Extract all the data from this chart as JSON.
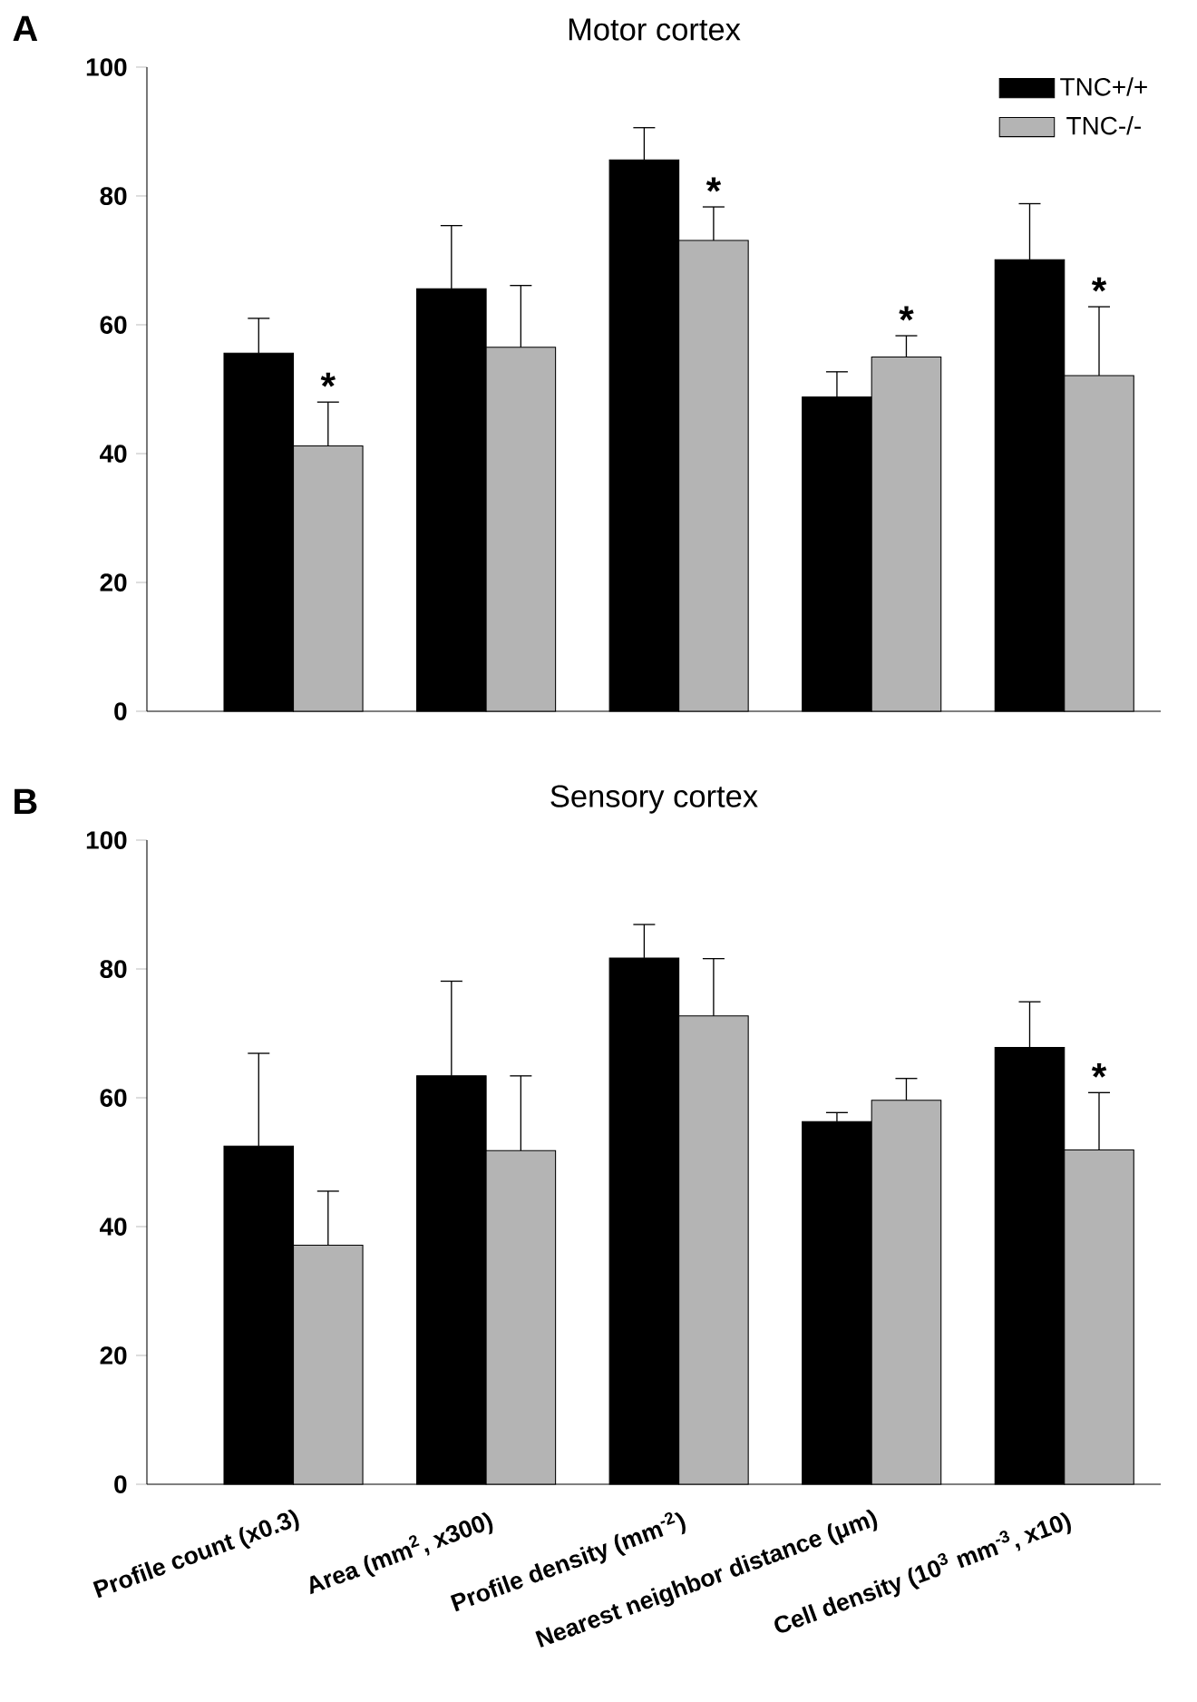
{
  "chart_data": [
    {
      "type": "bar",
      "title": "Motor cortex",
      "categories": [
        "Profile count (x0.3)",
        "Area (mm$^{2}$, x300)",
        "Profile density (mm$^{-2}$)",
        "Nearest neighbor distance (μm)",
        "Cell density (10$^{3}$ mm$^{-3}$, x10)"
      ],
      "series": [
        {
          "name": "TNC+/+",
          "color": "#000000",
          "values": [
            55.6,
            65.6,
            85.6,
            48.8,
            70.1
          ],
          "errors": [
            [
              55.6,
              61.0
            ],
            [
              65.6,
              75.4
            ],
            [
              85.6,
              90.6
            ],
            [
              48.8,
              52.7
            ],
            [
              70.1,
              78.8
            ]
          ]
        },
        {
          "name": "TNC-/-",
          "color": "#b4b4b4",
          "values": [
            41.2,
            56.5,
            73.1,
            55.0,
            52.1
          ],
          "errors": [
            [
              41.2,
              48.0
            ],
            [
              56.5,
              66.1
            ],
            [
              73.1,
              78.3
            ],
            [
              55.0,
              58.3
            ],
            [
              52.1,
              62.8
            ]
          ]
        }
      ],
      "ylim": [
        0,
        100
      ],
      "yticks": [
        0,
        20,
        40,
        60,
        80,
        100
      ],
      "legend": "top right",
      "tick_labels": "y",
      "annotations": [
        "A",
        {
          "text": "*",
          "x": "Profile count (x0.3)",
          "y": 48.0
        },
        {
          "text": "*",
          "x": "Profile density (mm$^{-2}$)",
          "y": 78.3
        },
        {
          "text": "*",
          "x": "Nearest neighbor distance (μm)",
          "y": 55.0
        },
        {
          "text": "*",
          "x": "Cell density (10$^{3}$ mm$^{-3}$, x10)",
          "y": 62.8
        }
      ]
    },
    {
      "type": "bar",
      "title": "Sensory cortex",
      "categories": [
        "Profile count (x0.3)",
        "Area (mm$^{2}$, x300)",
        "Profile density (mm$^{-2}$)",
        "Nearest neighbor distance (μm)",
        "Cell density (10$^{3}$ mm$^{-3}$, x10)"
      ],
      "series": [
        {
          "color": "#000000",
          "values": [
            52.5,
            63.4,
            81.7,
            56.3,
            67.8
          ],
          "errors": [
            [
              52.5,
              66.9
            ],
            [
              63.4,
              78.1
            ],
            [
              81.7,
              86.9
            ],
            [
              56.3,
              57.7
            ],
            [
              67.8,
              74.9
            ]
          ]
        },
        {
          "color": "#b4b4b4",
          "values": [
            37.1,
            51.8,
            72.7,
            59.6,
            51.9
          ],
          "errors": [
            [
              37.1,
              45.5
            ],
            [
              51.8,
              63.4
            ],
            [
              72.7,
              81.6
            ],
            [
              59.6,
              63.0
            ],
            [
              51.9,
              60.8
            ]
          ]
        }
      ],
      "ylim": [
        0,
        100
      ],
      "yticks": [
        0,
        20,
        40,
        60,
        80,
        100
      ],
      "annotations": [
        "B",
        {
          "text": "*",
          "x": "Cell density (10$^{3}$ mm$^{-3}$, x10)",
          "y": 60.8
        }
      ]
    }
  ]
}
